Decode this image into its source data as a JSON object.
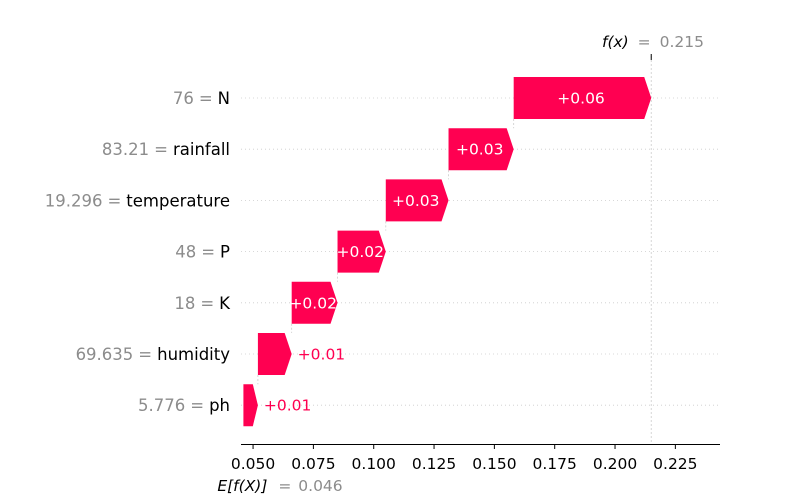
{
  "chart_data": {
    "type": "waterfall",
    "features": [
      {
        "value": "76",
        "name": "N",
        "contribution": 0.06,
        "label": "+0.06",
        "start": 0.158,
        "end": 0.215
      },
      {
        "value": "83.21",
        "name": "rainfall",
        "contribution": 0.03,
        "label": "+0.03",
        "start": 0.131,
        "end": 0.158
      },
      {
        "value": "19.296",
        "name": "temperature",
        "contribution": 0.03,
        "label": "+0.03",
        "start": 0.105,
        "end": 0.131
      },
      {
        "value": "48",
        "name": "P",
        "contribution": 0.02,
        "label": "+0.02",
        "start": 0.085,
        "end": 0.105
      },
      {
        "value": "18",
        "name": "K",
        "contribution": 0.02,
        "label": "+0.02",
        "start": 0.066,
        "end": 0.085
      },
      {
        "value": "69.635",
        "name": "humidity",
        "contribution": 0.01,
        "label": "+0.01",
        "start": 0.052,
        "end": 0.066
      },
      {
        "value": "5.776",
        "name": "ph",
        "contribution": 0.01,
        "label": "+0.01",
        "start": 0.046,
        "end": 0.052
      }
    ],
    "base_value": 0.046,
    "base_value_label": "0.046",
    "output_value": 0.215,
    "output_value_label": "0.215",
    "fx_label": "f(x)",
    "efx_label": "E[f(X)]",
    "equals": "=",
    "xlim": [
      0.045,
      0.2435
    ],
    "xticks": [
      {
        "value": 0.05,
        "label": "0.050"
      },
      {
        "value": 0.075,
        "label": "0.075"
      },
      {
        "value": 0.1,
        "label": "0.100"
      },
      {
        "value": 0.125,
        "label": "0.125"
      },
      {
        "value": 0.15,
        "label": "0.150"
      },
      {
        "value": 0.175,
        "label": "0.175"
      },
      {
        "value": 0.2,
        "label": "0.200"
      },
      {
        "value": 0.225,
        "label": "0.225"
      }
    ],
    "colors": {
      "positive": "#ff0051",
      "text_inside": "#ffffff",
      "muted": "#8c8c8c",
      "grid": "#cccccc"
    }
  }
}
